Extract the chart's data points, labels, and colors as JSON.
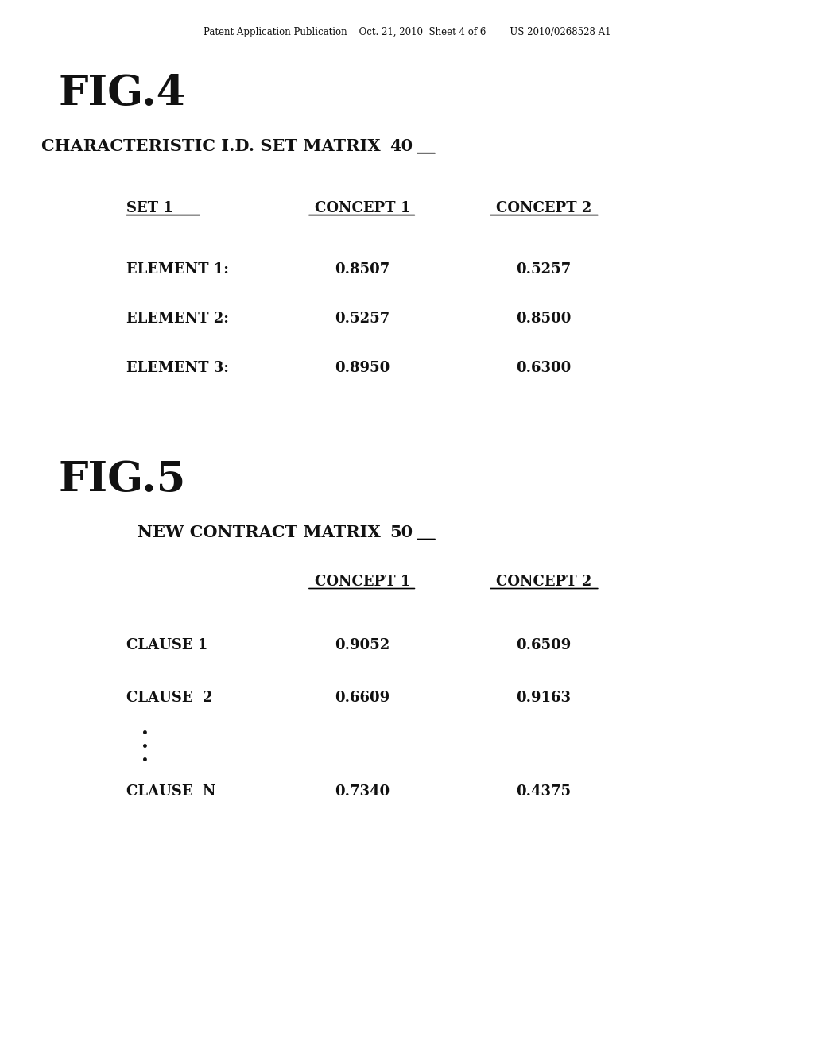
{
  "bg_color": "#ffffff",
  "header_text": "Patent Application Publication    Oct. 21, 2010  Sheet 4 of 6        US 2010/0268528 A1",
  "fig4_label": "FIG.4",
  "fig4_title_main": "CHARACTERISTIC I.D. SET MATRIX ",
  "fig4_title_ref": "40",
  "fig4_set_label": "SET 1",
  "fig4_col1_header": "CONCEPT 1",
  "fig4_col2_header": "CONCEPT 2",
  "fig4_rows": [
    {
      "label": "ELEMENT 1:",
      "c1": "0.8507",
      "c2": "0.5257"
    },
    {
      "label": "ELEMENT 2:",
      "c1": "0.5257",
      "c2": "0.8500"
    },
    {
      "label": "ELEMENT 3:",
      "c1": "0.8950",
      "c2": "0.6300"
    }
  ],
  "fig5_label": "FIG.5",
  "fig5_title_main": "NEW CONTRACT MATRIX ",
  "fig5_title_ref": "50",
  "fig5_col1_header": "CONCEPT 1",
  "fig5_col2_header": "CONCEPT 2",
  "fig5_rows": [
    {
      "label": "CLAUSE 1",
      "c1": "0.9052",
      "c2": "0.6509"
    },
    {
      "label": "CLAUSE  2",
      "c1": "0.6609",
      "c2": "0.9163"
    },
    {
      "label": "CLAUSE  N",
      "c1": "0.7340",
      "c2": "0.4375"
    }
  ],
  "font_family": "serif"
}
